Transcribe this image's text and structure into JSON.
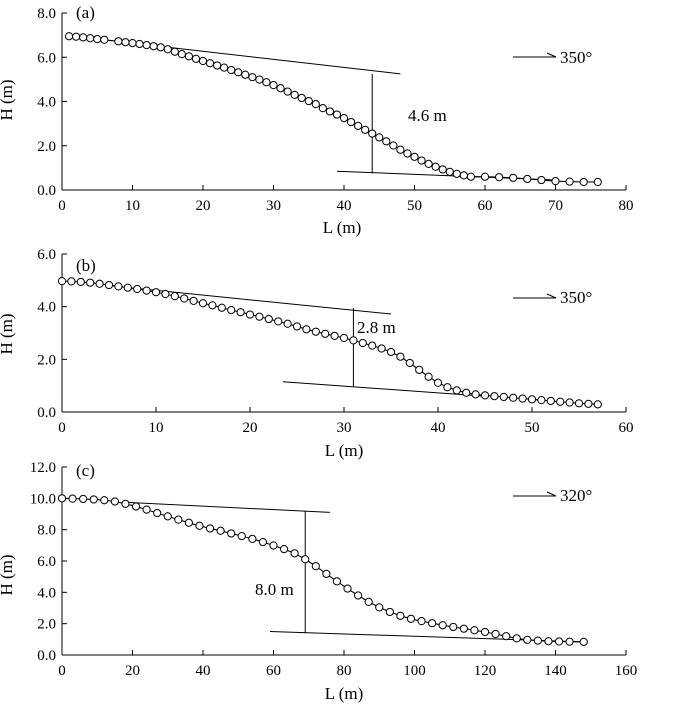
{
  "chart_data": [
    {
      "type": "line",
      "panel_label": "(a)",
      "xlabel": "L (m)",
      "ylabel": "H (m)",
      "xlim": [
        0,
        80
      ],
      "ylim": [
        0,
        8
      ],
      "xticks": [
        "0",
        "10",
        "20",
        "30",
        "40",
        "50",
        "60",
        "70",
        "80"
      ],
      "yticks": [
        "0.0",
        "2.0",
        "4.0",
        "6.0",
        "8.0"
      ],
      "direction_label": "350°",
      "series": [
        {
          "marker": "open-circle",
          "x": [
            1,
            2,
            3,
            4,
            5,
            6,
            8,
            9,
            10,
            11,
            12,
            13,
            14,
            15,
            16,
            17,
            18,
            19,
            20,
            21,
            22,
            23,
            24,
            25,
            26,
            27,
            28,
            29,
            30,
            31,
            32,
            33,
            34,
            35,
            36,
            37,
            38,
            39,
            40,
            41,
            42,
            43,
            44,
            45,
            46,
            47,
            48,
            49,
            50,
            51,
            52,
            53,
            54,
            55,
            56,
            57,
            58,
            60,
            62,
            64,
            66,
            68,
            70,
            72,
            74,
            76
          ],
          "y": [
            6.95,
            6.93,
            6.9,
            6.86,
            6.82,
            6.79,
            6.72,
            6.68,
            6.64,
            6.6,
            6.55,
            6.5,
            6.45,
            6.36,
            6.25,
            6.14,
            6.04,
            5.93,
            5.83,
            5.73,
            5.63,
            5.53,
            5.42,
            5.32,
            5.21,
            5.1,
            4.99,
            4.87,
            4.74,
            4.6,
            4.45,
            4.3,
            4.16,
            4.02,
            3.88,
            3.7,
            3.55,
            3.41,
            3.25,
            3.07,
            2.9,
            2.72,
            2.55,
            2.38,
            2.2,
            2.01,
            1.82,
            1.65,
            1.5,
            1.33,
            1.18,
            1.05,
            0.93,
            0.82,
            0.73,
            0.66,
            0.6,
            0.6,
            0.58,
            0.55,
            0.5,
            0.45,
            0.4,
            0.38,
            0.36,
            0.36
          ]
        }
      ],
      "reference_lines": [
        {
          "x": [
            15,
            48
          ],
          "y": [
            6.45,
            5.25
          ]
        },
        {
          "x": [
            39,
            70
          ],
          "y": [
            0.85,
            0.45
          ]
        }
      ],
      "measure": {
        "x": 44,
        "y_top": 5.25,
        "y_bottom": 0.75,
        "label": "4.6 m"
      }
    },
    {
      "type": "line",
      "panel_label": "(b)",
      "xlabel": "L (m)",
      "ylabel": "H (m)",
      "xlim": [
        0,
        60
      ],
      "ylim": [
        0,
        6
      ],
      "xticks": [
        "0",
        "10",
        "20",
        "30",
        "40",
        "50",
        "60"
      ],
      "yticks": [
        "0.0",
        "2.0",
        "4.0",
        "6.0"
      ],
      "direction_label": "350°",
      "series": [
        {
          "marker": "open-circle",
          "x": [
            0,
            1,
            2,
            3,
            4,
            5,
            6,
            7,
            8,
            9,
            10,
            11,
            12,
            13,
            14,
            15,
            16,
            17,
            18,
            19,
            20,
            21,
            22,
            23,
            24,
            25,
            26,
            27,
            28,
            29,
            30,
            31,
            32,
            33,
            34,
            35,
            36,
            37,
            38,
            39,
            40,
            41,
            42,
            43,
            44,
            45,
            46,
            47,
            48,
            49,
            50,
            51,
            52,
            53,
            54,
            55,
            56,
            57
          ],
          "y": [
            4.97,
            4.96,
            4.94,
            4.91,
            4.87,
            4.82,
            4.77,
            4.72,
            4.67,
            4.61,
            4.55,
            4.48,
            4.4,
            4.31,
            4.22,
            4.13,
            4.05,
            3.96,
            3.87,
            3.79,
            3.7,
            3.62,
            3.53,
            3.44,
            3.35,
            3.25,
            3.14,
            3.05,
            2.97,
            2.89,
            2.81,
            2.72,
            2.62,
            2.52,
            2.41,
            2.28,
            2.1,
            1.86,
            1.6,
            1.34,
            1.11,
            0.94,
            0.82,
            0.73,
            0.67,
            0.63,
            0.6,
            0.57,
            0.54,
            0.51,
            0.48,
            0.45,
            0.42,
            0.39,
            0.36,
            0.33,
            0.31,
            0.29
          ]
        }
      ],
      "reference_lines": [
        {
          "x": [
            5,
            35
          ],
          "y": [
            4.8,
            3.72
          ]
        },
        {
          "x": [
            23.5,
            45
          ],
          "y": [
            1.15,
            0.6
          ]
        }
      ],
      "measure": {
        "x": 31,
        "y_top": 3.95,
        "y_bottom": 0.95,
        "label": "2.8 m"
      }
    },
    {
      "type": "line",
      "panel_label": "(c)",
      "xlabel": "L (m)",
      "ylabel": "H (m)",
      "xlim": [
        0,
        160
      ],
      "ylim": [
        0,
        12
      ],
      "xticks": [
        "0",
        "20",
        "40",
        "60",
        "80",
        "100",
        "120",
        "140",
        "160"
      ],
      "yticks": [
        "0.0",
        "2.0",
        "4.0",
        "6.0",
        "8.0",
        "10.0",
        "12.0"
      ],
      "direction_label": "320°",
      "series": [
        {
          "marker": "open-circle",
          "x": [
            0,
            3,
            6,
            9,
            12,
            15,
            18,
            21,
            24,
            27,
            30,
            33,
            36,
            39,
            42,
            45,
            48,
            51,
            54,
            57,
            60,
            63,
            66,
            69,
            72,
            75,
            78,
            81,
            84,
            87,
            90,
            93,
            96,
            99,
            102,
            105,
            108,
            111,
            114,
            117,
            120,
            123,
            126,
            129,
            132,
            135,
            138,
            141,
            144,
            148
          ],
          "y": [
            10.0,
            9.98,
            9.96,
            9.93,
            9.88,
            9.8,
            9.65,
            9.48,
            9.28,
            9.06,
            8.85,
            8.64,
            8.44,
            8.25,
            8.08,
            7.93,
            7.76,
            7.59,
            7.41,
            7.21,
            6.99,
            6.76,
            6.49,
            6.11,
            5.67,
            5.18,
            4.7,
            4.24,
            3.8,
            3.39,
            3.04,
            2.75,
            2.5,
            2.31,
            2.16,
            2.03,
            1.9,
            1.79,
            1.68,
            1.58,
            1.47,
            1.34,
            1.2,
            1.06,
            0.97,
            0.92,
            0.88,
            0.86,
            0.85,
            0.84
          ]
        }
      ],
      "reference_lines": [
        {
          "x": [
            18,
            76
          ],
          "y": [
            9.75,
            9.1
          ]
        },
        {
          "x": [
            59,
            148
          ],
          "y": [
            1.5,
            0.84
          ]
        }
      ],
      "measure": {
        "x": 69,
        "y_top": 9.2,
        "y_bottom": 1.4,
        "label": "8.0 m"
      }
    }
  ]
}
